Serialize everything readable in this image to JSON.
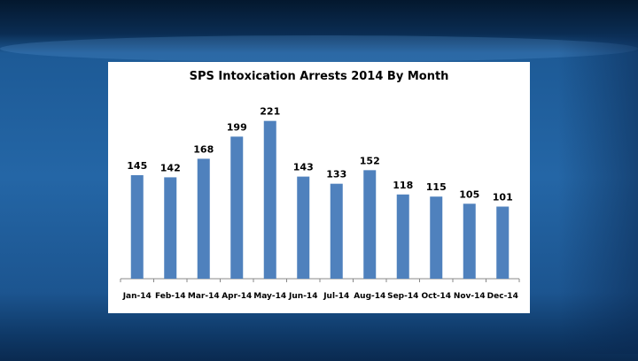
{
  "chart_data": {
    "type": "bar",
    "title": "SPS Intoxication Arrests 2014 By Month",
    "categories": [
      "Jan-14",
      "Feb-14",
      "Mar-14",
      "Apr-14",
      "May-14",
      "Jun-14",
      "Jul-14",
      "Aug-14",
      "Sep-14",
      "Oct-14",
      "Nov-14",
      "Dec-14"
    ],
    "values": [
      145,
      142,
      168,
      199,
      221,
      143,
      133,
      152,
      118,
      115,
      105,
      101
    ],
    "xlabel": "",
    "ylabel": "",
    "ylim": [
      0,
      250
    ],
    "grid": false,
    "data_labels": true,
    "bar_color": "#4f81bd"
  }
}
